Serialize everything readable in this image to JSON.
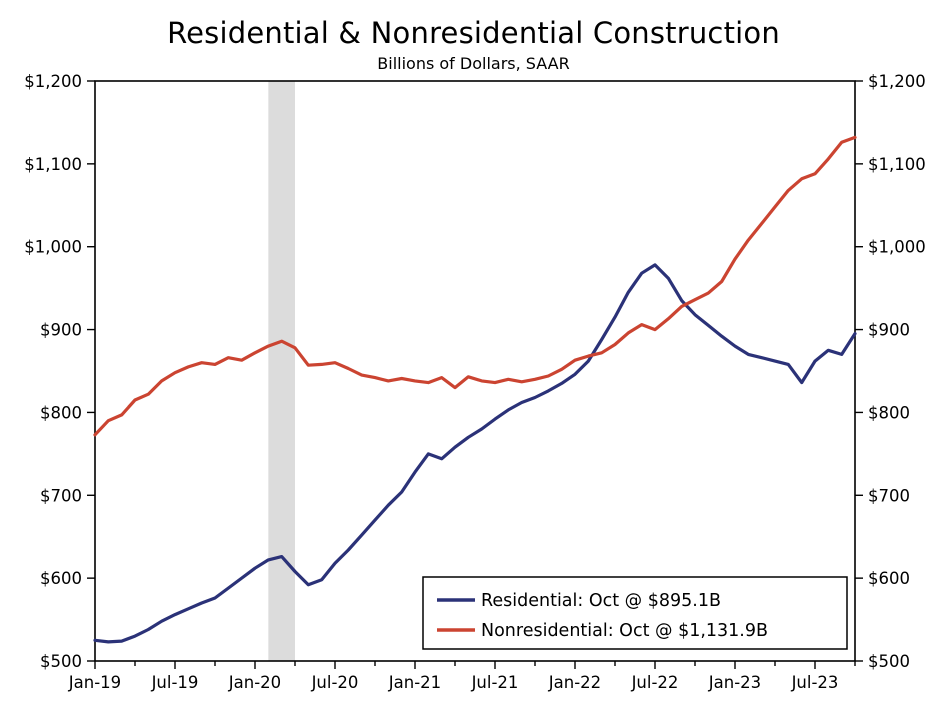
{
  "title": "Residential & Nonresidential Construction",
  "subtitle": "Billions of Dollars, SAAR",
  "colors": {
    "residential": "#2B3278",
    "nonresidential": "#CB4431",
    "recession_band": "#DCDCDC",
    "axis": "#000000",
    "legend_background": "#FFFFFF"
  },
  "chart_data": {
    "type": "line",
    "title": "Residential & Nonresidential Construction",
    "subtitle": "Billions of Dollars, SAAR",
    "ylabel": "Billions of Dollars, SAAR",
    "ylim": [
      500,
      1200
    ],
    "y_ticks": [
      500,
      600,
      700,
      800,
      900,
      1000,
      1100,
      1200
    ],
    "y_tick_labels": [
      "$500",
      "$600",
      "$700",
      "$800",
      "$900",
      "$1,000",
      "$1,100",
      "$1,200"
    ],
    "x_tick_labels": [
      "Jan-19",
      "Jul-19",
      "Jan-20",
      "Jul-20",
      "Jan-21",
      "Jul-21",
      "Jan-22",
      "Jul-22",
      "Jan-23",
      "Jul-23"
    ],
    "grid": false,
    "legend_position": "bottom-right",
    "recession_band": {
      "start": "Feb-20",
      "end": "Apr-20"
    },
    "x": [
      "Jan-19",
      "Feb-19",
      "Mar-19",
      "Apr-19",
      "May-19",
      "Jun-19",
      "Jul-19",
      "Aug-19",
      "Sep-19",
      "Oct-19",
      "Nov-19",
      "Dec-19",
      "Jan-20",
      "Feb-20",
      "Mar-20",
      "Apr-20",
      "May-20",
      "Jun-20",
      "Jul-20",
      "Aug-20",
      "Sep-20",
      "Oct-20",
      "Nov-20",
      "Dec-20",
      "Jan-21",
      "Feb-21",
      "Mar-21",
      "Apr-21",
      "May-21",
      "Jun-21",
      "Jul-21",
      "Aug-21",
      "Sep-21",
      "Oct-21",
      "Nov-21",
      "Dec-21",
      "Jan-22",
      "Feb-22",
      "Mar-22",
      "Apr-22",
      "May-22",
      "Jun-22",
      "Jul-22",
      "Aug-22",
      "Sep-22",
      "Oct-22",
      "Nov-22",
      "Dec-22",
      "Jan-23",
      "Feb-23",
      "Mar-23",
      "Apr-23",
      "May-23",
      "Jun-23",
      "Jul-23",
      "Aug-23",
      "Sep-23",
      "Oct-23"
    ],
    "series": [
      {
        "name": "Residential",
        "legend_label": "Residential: Oct @ $895.1B",
        "color_key": "residential",
        "latest_label": "Oct @ $895.1B",
        "values": [
          525,
          523,
          524,
          530,
          538,
          548,
          556,
          563,
          570,
          576,
          588,
          600,
          612,
          622,
          626,
          608,
          592,
          598,
          618,
          634,
          652,
          670,
          688,
          704,
          728,
          750,
          744,
          758,
          770,
          780,
          792,
          803,
          812,
          818,
          826,
          835,
          846,
          862,
          888,
          915,
          945,
          968,
          978,
          962,
          935,
          918,
          905,
          892,
          880,
          870,
          866,
          862,
          858,
          836,
          862,
          875,
          870,
          895.1
        ]
      },
      {
        "name": "Nonresidential",
        "legend_label": "Nonresidential: Oct @ $1,131.9B",
        "color_key": "nonresidential",
        "latest_label": "Oct @ $1,131.9B",
        "values": [
          773,
          790,
          797,
          815,
          822,
          838,
          848,
          855,
          860,
          858,
          866,
          863,
          872,
          880,
          886,
          878,
          857,
          858,
          860,
          853,
          845,
          842,
          838,
          841,
          838,
          836,
          842,
          830,
          843,
          838,
          836,
          840,
          837,
          840,
          844,
          852,
          863,
          868,
          872,
          882,
          896,
          906,
          900,
          913,
          928,
          936,
          944,
          958,
          985,
          1008,
          1028,
          1048,
          1068,
          1082,
          1088,
          1106,
          1126,
          1131.9
        ]
      }
    ]
  }
}
